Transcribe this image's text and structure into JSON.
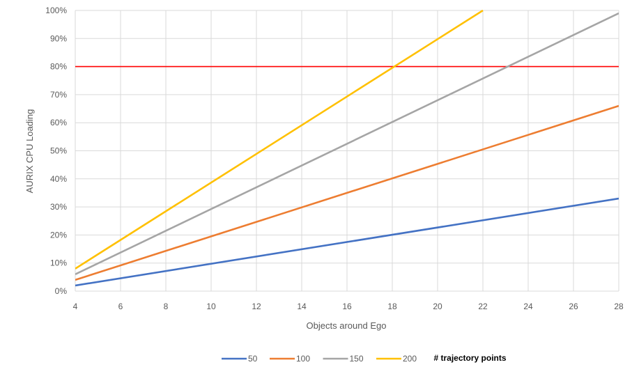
{
  "chart_data": {
    "type": "line",
    "title": "",
    "xlabel": "Objects around Ego",
    "ylabel": "AURIX CPU Loading",
    "xlim": [
      4,
      28
    ],
    "ylim": [
      0,
      1.0
    ],
    "x_ticks": [
      4,
      6,
      8,
      10,
      12,
      14,
      16,
      18,
      20,
      22,
      24,
      26,
      28
    ],
    "y_ticks": [
      0,
      0.1,
      0.2,
      0.3,
      0.4,
      0.5,
      0.6,
      0.7,
      0.8,
      0.9,
      1.0
    ],
    "y_tick_labels": [
      "0%",
      "10%",
      "20%",
      "30%",
      "40%",
      "50%",
      "60%",
      "70%",
      "80%",
      "90%",
      "100%"
    ],
    "x_tick_labels": [
      "4",
      "6",
      "8",
      "10",
      "12",
      "14",
      "16",
      "18",
      "20",
      "22",
      "24",
      "26",
      "28"
    ],
    "grid": true,
    "legend_position": "bottom",
    "legend_note": "# trajectory points",
    "series": [
      {
        "name": "50",
        "color": "#4472c4",
        "x": [
          4,
          28
        ],
        "y": [
          0.02,
          0.33
        ]
      },
      {
        "name": "100",
        "color": "#ed7d31",
        "x": [
          4,
          28
        ],
        "y": [
          0.04,
          0.66
        ]
      },
      {
        "name": "150",
        "color": "#a5a5a5",
        "x": [
          4,
          28
        ],
        "y": [
          0.06,
          0.99
        ]
      },
      {
        "name": "200",
        "color": "#ffc000",
        "x": [
          4,
          22
        ],
        "y": [
          0.08,
          1.0
        ]
      }
    ],
    "threshold": {
      "y": 0.8,
      "color": "#ff0000"
    },
    "grid_color": "#d9d9d9"
  }
}
